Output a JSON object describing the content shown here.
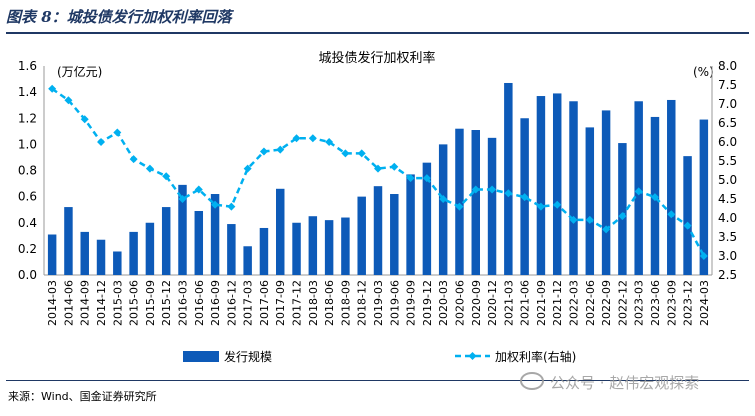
{
  "figure_title": "图表 8：城投债发行加权利率回落",
  "source": "来源：Wind、国金证券研究所",
  "watermark": "公众号 · 赵伟宏观探索",
  "colors": {
    "bar": "#0d5ab8",
    "line": "#00b0f0",
    "title_bar": "#1f3864"
  },
  "chart_data": {
    "type": "bar+line",
    "title": "城投债发行加权利率",
    "left_unit": "(万亿元)",
    "right_unit": "(%)",
    "ylim_left": [
      0,
      1.6
    ],
    "yticks_left": [
      "0.0",
      "0.2",
      "0.4",
      "0.6",
      "0.8",
      "1.0",
      "1.2",
      "1.4",
      "1.6"
    ],
    "ylim_right": [
      2.5,
      8.0
    ],
    "yticks_right": [
      "2.5",
      "3.0",
      "3.5",
      "4.0",
      "4.5",
      "5.0",
      "5.5",
      "6.0",
      "6.5",
      "7.0",
      "7.5",
      "8.0"
    ],
    "grid": false,
    "legend_position": "bottom",
    "x_tick_labels": [
      "2014-03",
      "2014-06",
      "2014-09",
      "2014-12",
      "2015-03",
      "2015-06",
      "2015-09",
      "2015-12",
      "2016-03",
      "2016-06",
      "2016-09",
      "2016-12",
      "2017-03",
      "2017-06",
      "2017-09",
      "2017-12",
      "2018-03",
      "2018-06",
      "2018-09",
      "2018-12",
      "2019-03",
      "2019-06",
      "2019-09",
      "2019-12",
      "2020-03",
      "2020-06",
      "2020-09",
      "2020-12",
      "2021-03",
      "2021-06",
      "2021-09",
      "2021-12",
      "2022-03",
      "2022-06",
      "2022-09",
      "2022-12",
      "2023-03",
      "2023-06",
      "2023-09",
      "2023-12",
      "2024-03"
    ],
    "x_labels_shown": [
      "2014-03",
      "2014-06",
      "2014-09",
      "2014-12",
      "2015-03",
      "2015-06",
      "2015-09",
      "2015-12",
      "2016-03",
      "2016-06",
      "2016-09",
      "2016-12",
      "2017-03",
      "2017-06",
      "2017-09",
      "2017-12",
      "2018-03",
      "2018-06",
      "2018-09",
      "2018-12",
      "2019-03",
      "2019-06",
      "2019-09",
      "2019-12",
      "2020-03",
      "2020-06",
      "2020-09",
      "2020-12",
      "2021-03",
      "2021-06",
      "2021-09",
      "2021-12",
      "2022-03",
      "2022-06",
      "2022-09",
      "2022-12",
      "2023-03",
      "2023-06",
      "2023-09",
      "2023-12",
      "2024-03"
    ],
    "series": [
      {
        "name": "发行规模",
        "type": "bar",
        "axis": "left",
        "values": [
          0.31,
          0.52,
          0.33,
          0.27,
          0.18,
          0.33,
          0.4,
          0.52,
          0.69,
          0.49,
          0.62,
          0.39,
          0.22,
          0.36,
          0.66,
          0.4,
          0.45,
          0.42,
          0.44,
          0.6,
          0.68,
          0.62,
          0.77,
          0.86,
          1.0,
          1.12,
          1.11,
          1.05,
          1.47,
          1.2,
          1.37,
          1.39,
          1.33,
          1.13,
          1.26,
          1.01,
          1.33,
          1.21,
          1.34,
          0.91,
          1.19
        ]
      },
      {
        "name": "加权利率(右轴)",
        "type": "line",
        "axis": "right",
        "values": [
          7.4,
          7.1,
          6.6,
          6.0,
          6.25,
          5.55,
          5.3,
          5.1,
          4.5,
          4.75,
          4.35,
          4.3,
          5.3,
          5.75,
          5.8,
          6.1,
          6.1,
          6.0,
          5.7,
          5.7,
          5.3,
          5.35,
          5.05,
          5.05,
          4.5,
          4.3,
          4.75,
          4.75,
          4.65,
          4.55,
          4.3,
          4.35,
          3.95,
          3.95,
          3.7,
          4.05,
          4.7,
          4.55,
          4.1,
          3.8,
          3.0
        ]
      }
    ]
  }
}
